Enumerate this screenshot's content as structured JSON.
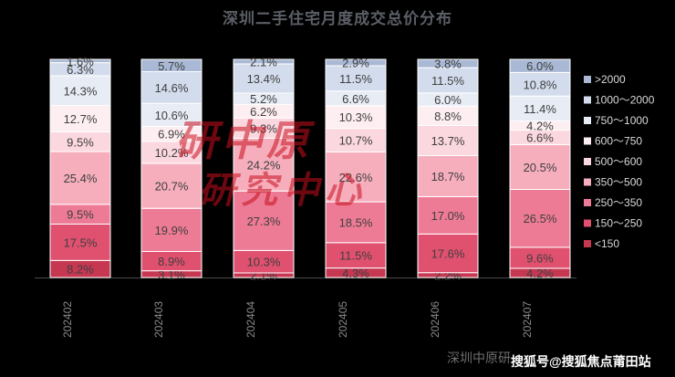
{
  "title": "深圳二手住宅月度成交总价分布",
  "watermarks": {
    "source": "深圳中原研",
    "sohu": "搜狐号@搜狐焦点莆田站",
    "stamp_line1": "研中原",
    "stamp_line2": "研究中心"
  },
  "colors": {
    "background": "#000000",
    "segments": [
      "#c63752",
      "#e0506f",
      "#ee7b95",
      "#f6aebd",
      "#fbd7df",
      "#fdeef1",
      "#e7ecf5",
      "#d3dcec",
      "#a9b8d4"
    ]
  },
  "chart_data": {
    "type": "bar",
    "stacked": true,
    "percent": true,
    "categories": [
      "202402",
      "202403",
      "202404",
      "202405",
      "202406",
      "202407"
    ],
    "ylim": [
      0,
      100
    ],
    "legend_position": "right",
    "grid": false,
    "series": [
      {
        "name": "<150",
        "values": [
          8.2,
          3.1,
          2.1,
          4.3,
          2.2,
          4.2
        ]
      },
      {
        "name": "150～250",
        "values": [
          17.5,
          8.9,
          10.3,
          11.5,
          17.6,
          9.6
        ]
      },
      {
        "name": "250～350",
        "values": [
          9.5,
          19.9,
          27.3,
          18.5,
          17.0,
          26.5
        ]
      },
      {
        "name": "350～500",
        "values": [
          25.4,
          20.7,
          24.2,
          22.6,
          18.7,
          20.5
        ]
      },
      {
        "name": "500～600",
        "values": [
          9.5,
          10.2,
          9.3,
          10.7,
          13.7,
          6.6
        ]
      },
      {
        "name": "600～750",
        "values": [
          12.7,
          6.9,
          6.2,
          10.3,
          8.8,
          4.2
        ]
      },
      {
        "name": "750～1000",
        "values": [
          14.3,
          10.6,
          5.2,
          6.6,
          6.0,
          11.4
        ]
      },
      {
        "name": "1000～2000",
        "values": [
          6.3,
          14.6,
          13.4,
          11.5,
          11.5,
          10.8
        ]
      },
      {
        "name": ">2000",
        "values": [
          1.6,
          5.7,
          2.1,
          2.9,
          3.8,
          6.0
        ]
      }
    ]
  }
}
